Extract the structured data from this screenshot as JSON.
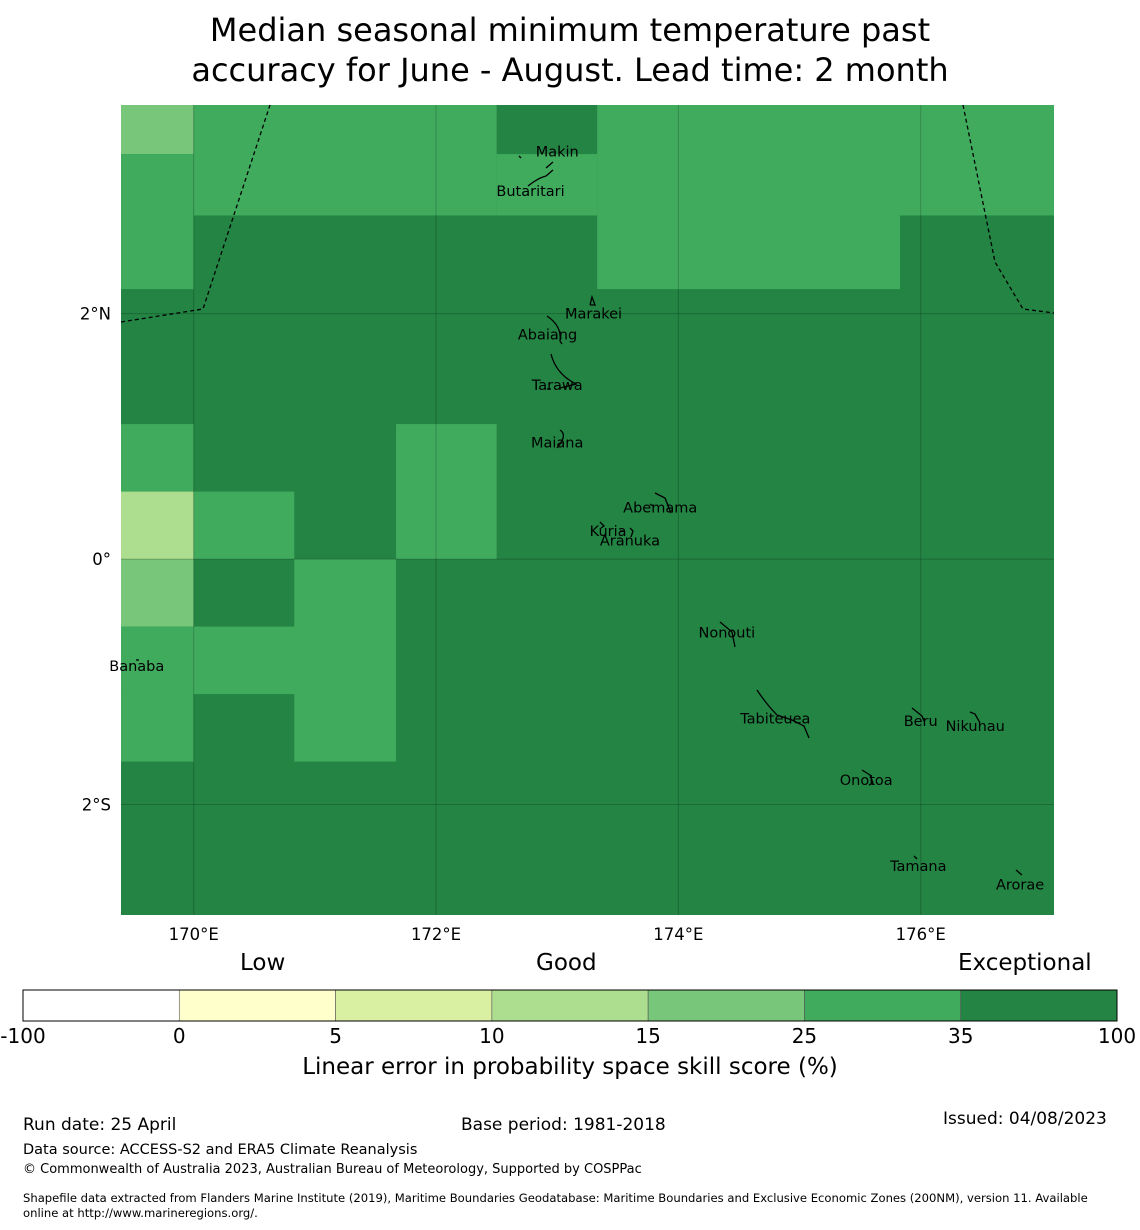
{
  "title": {
    "line1": "Median seasonal minimum temperature past",
    "line2": "accuracy for June - August. Lead time: 2 month"
  },
  "map": {
    "lon_range": [
      169.4,
      177.1
    ],
    "lat_range": [
      -2.9,
      3.7
    ],
    "x_ticks": [
      {
        "value": 170,
        "label": "170°E"
      },
      {
        "value": 172,
        "label": "172°E"
      },
      {
        "value": 174,
        "label": "174°E"
      },
      {
        "value": 176,
        "label": "176°E"
      }
    ],
    "y_ticks": [
      {
        "value": 2,
        "label": "2°N"
      },
      {
        "value": 0,
        "label": "0°"
      },
      {
        "value": -2,
        "label": "2°S"
      }
    ],
    "background_color": "#238443",
    "grid_cells": [
      {
        "lon0": 169.4,
        "lon1": 170.0,
        "lat0": 3.3,
        "lat1": 3.7,
        "color": "#78c679"
      },
      {
        "lon0": 169.4,
        "lon1": 170.0,
        "lat0": 2.2,
        "lat1": 3.3,
        "color": "#41ab5d"
      },
      {
        "lon0": 170.0,
        "lon1": 172.5,
        "lat0": 2.8,
        "lat1": 3.7,
        "color": "#41ab5d"
      },
      {
        "lon0": 172.5,
        "lon1": 173.33,
        "lat0": 2.8,
        "lat1": 3.3,
        "color": "#41ab5d"
      },
      {
        "lon0": 173.33,
        "lon1": 177.1,
        "lat0": 2.8,
        "lat1": 3.7,
        "color": "#41ab5d"
      },
      {
        "lon0": 173.33,
        "lon1": 175.83,
        "lat0": 2.2,
        "lat1": 2.8,
        "color": "#41ab5d"
      },
      {
        "lon0": 169.4,
        "lon1": 170.0,
        "lat0": 0.55,
        "lat1": 1.1,
        "color": "#41ab5d"
      },
      {
        "lon0": 169.4,
        "lon1": 170.0,
        "lat0": 0.0,
        "lat1": 0.55,
        "color": "#addd8e"
      },
      {
        "lon0": 170.0,
        "lon1": 170.83,
        "lat0": 0.0,
        "lat1": 0.55,
        "color": "#41ab5d"
      },
      {
        "lon0": 171.67,
        "lon1": 172.5,
        "lat0": 0.0,
        "lat1": 1.1,
        "color": "#41ab5d"
      },
      {
        "lon0": 169.4,
        "lon1": 170.0,
        "lat0": -0.55,
        "lat1": 0.0,
        "color": "#78c679"
      },
      {
        "lon0": 170.83,
        "lon1": 171.67,
        "lat0": -0.55,
        "lat1": 0.0,
        "color": "#41ab5d"
      },
      {
        "lon0": 169.4,
        "lon1": 171.67,
        "lat0": -1.1,
        "lat1": -0.55,
        "color": "#41ab5d"
      },
      {
        "lon0": 169.4,
        "lon1": 170.0,
        "lat0": -1.65,
        "lat1": -1.1,
        "color": "#41ab5d"
      },
      {
        "lon0": 170.83,
        "lon1": 171.67,
        "lat0": -1.65,
        "lat1": -1.1,
        "color": "#41ab5d"
      }
    ],
    "places": [
      {
        "name": "Makin",
        "lon": 173.0,
        "lat": 3.32
      },
      {
        "name": "Butaritari",
        "lon": 172.78,
        "lat": 3.0
      },
      {
        "name": "Marakei",
        "lon": 173.3,
        "lat": 2.0
      },
      {
        "name": "Abaiang",
        "lon": 172.92,
        "lat": 1.83
      },
      {
        "name": "Tarawa",
        "lon": 173.0,
        "lat": 1.42
      },
      {
        "name": "Maiana",
        "lon": 173.0,
        "lat": 0.95
      },
      {
        "name": "Abemama",
        "lon": 173.85,
        "lat": 0.42
      },
      {
        "name": "Kuria",
        "lon": 173.42,
        "lat": 0.23
      },
      {
        "name": "Aranuka",
        "lon": 173.6,
        "lat": 0.15
      },
      {
        "name": "Nonouti",
        "lon": 174.4,
        "lat": -0.6
      },
      {
        "name": "Banaba",
        "lon": 169.53,
        "lat": -0.87
      },
      {
        "name": "Tabiteuea",
        "lon": 174.8,
        "lat": -1.3
      },
      {
        "name": "Beru",
        "lon": 176.0,
        "lat": -1.32
      },
      {
        "name": "Nikunau",
        "lon": 176.45,
        "lat": -1.36
      },
      {
        "name": "Onotoa",
        "lon": 175.55,
        "lat": -1.8
      },
      {
        "name": "Tamana",
        "lon": 175.98,
        "lat": -2.5
      },
      {
        "name": "Arorae",
        "lon": 176.82,
        "lat": -2.65
      }
    ]
  },
  "legend": {
    "headings": [
      "Low",
      "Good",
      "Exceptional"
    ],
    "boundaries": [
      "-100",
      "0",
      "5",
      "10",
      "15",
      "25",
      "35",
      "100"
    ],
    "colors": [
      "#ffffff",
      "#ffffcc",
      "#d9f0a3",
      "#addd8e",
      "#78c679",
      "#41ab5d",
      "#238443"
    ],
    "label": "Linear error in probability space skill score (%)"
  },
  "footer": {
    "run_date": "Run date: 25 April",
    "base_period": "Base period: 1981-2018",
    "issued": "Issued: 04/08/2023",
    "data_source": "Data source: ACCESS-S2 and ERA5 Climate Reanalysis",
    "copyright": "© Commonwealth of Australia 2023, Australian Bureau of Meteorology, Supported by COSPPac",
    "shapefile_line1": "Shapefile data extracted from Flanders Marine Institute (2019), Maritime Boundaries Geodatabase: Maritime Boundaries and Exclusive Economic Zones (200NM), version 11. Available",
    "shapefile_line2": "online at http://www.marineregions.org/."
  }
}
